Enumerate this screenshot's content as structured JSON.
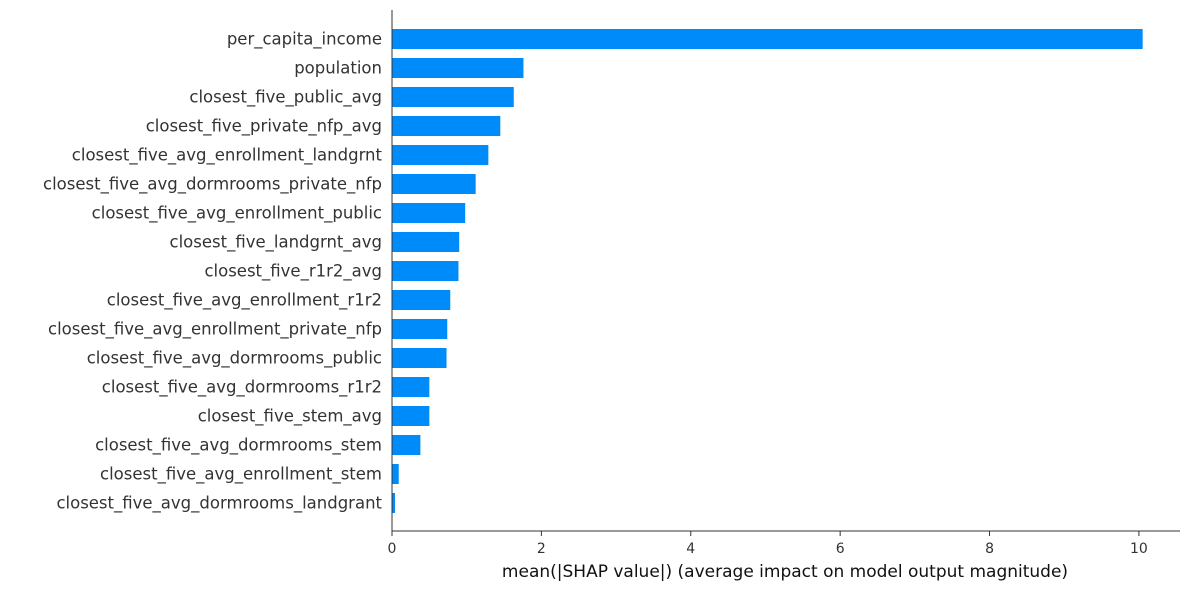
{
  "chart_data": {
    "type": "bar",
    "orientation": "horizontal",
    "categories": [
      "per_capita_income",
      "population",
      "closest_five_public_avg",
      "closest_five_private_nfp_avg",
      "closest_five_avg_enrollment_landgrnt",
      "closest_five_avg_dormrooms_private_nfp",
      "closest_five_avg_enrollment_public",
      "closest_five_landgrnt_avg",
      "closest_five_r1r2_avg",
      "closest_five_avg_enrollment_r1r2",
      "closest_five_avg_enrollment_private_nfp",
      "closest_five_avg_dormrooms_public",
      "closest_five_avg_dormrooms_r1r2",
      "closest_five_stem_avg",
      "closest_five_avg_dormrooms_stem",
      "closest_five_avg_enrollment_stem",
      "closest_five_avg_dormrooms_landgrant"
    ],
    "values": [
      10.05,
      1.76,
      1.63,
      1.45,
      1.29,
      1.12,
      0.98,
      0.9,
      0.89,
      0.78,
      0.74,
      0.73,
      0.5,
      0.5,
      0.38,
      0.09,
      0.04
    ],
    "xlabel": "mean(|SHAP value|) (average impact on model output magnitude)",
    "ylabel": "",
    "xlim": [
      0,
      10.55
    ],
    "xticks": [
      0,
      2,
      4,
      6,
      8,
      10
    ],
    "bar_color": "#008bfb",
    "grid": false,
    "legend": "none"
  }
}
